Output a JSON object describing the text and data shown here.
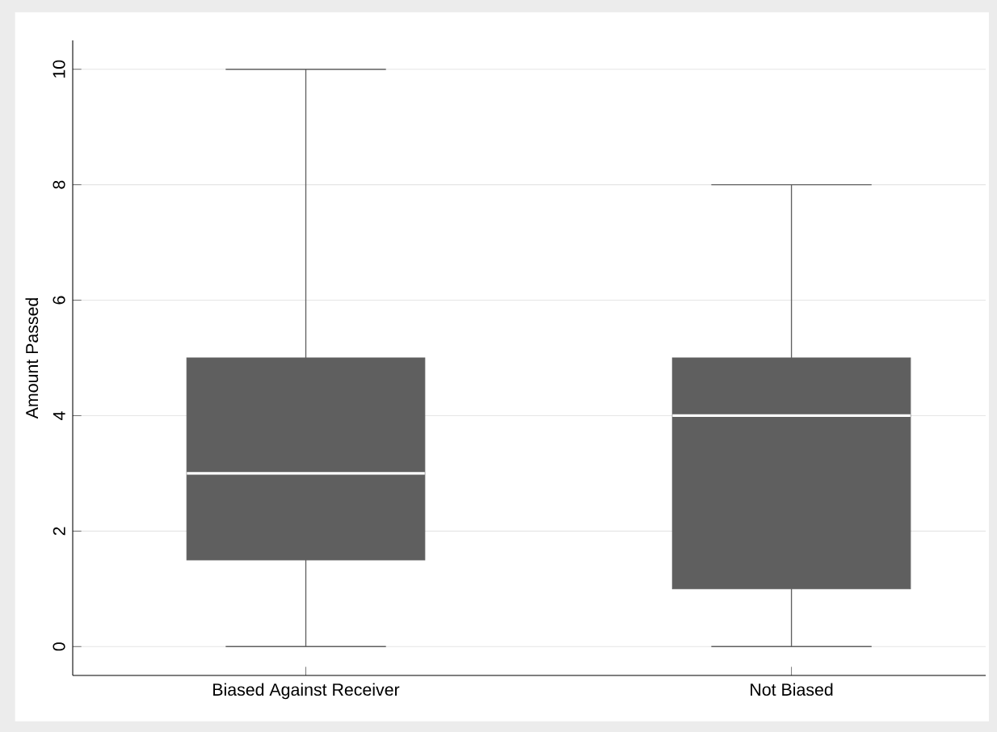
{
  "chart_data": {
    "type": "box",
    "ylabel": "Amount Passed",
    "categories": [
      "Biased Against Receiver",
      "Not Biased"
    ],
    "boxes": [
      {
        "low": 0,
        "q1": 1.5,
        "median": 3,
        "q3": 5,
        "high": 10
      },
      {
        "low": 0,
        "q1": 1,
        "median": 4,
        "q3": 5,
        "high": 8
      }
    ],
    "color": "#5f5f5f",
    "ylim": [
      -0.5,
      10.5
    ],
    "yticks": [
      0,
      2,
      4,
      6,
      8,
      10
    ],
    "grid": "y"
  }
}
